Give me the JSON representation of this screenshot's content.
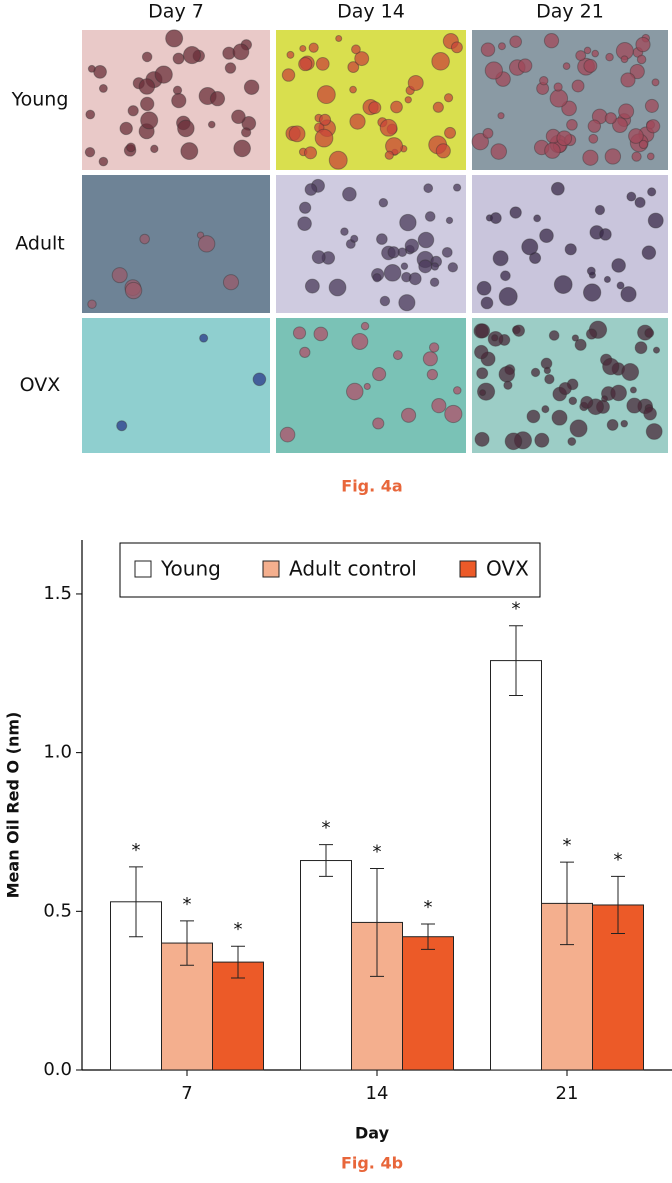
{
  "figure_a": {
    "column_labels": [
      "Day 7",
      "Day 14",
      "Day 21"
    ],
    "row_labels": [
      "Young",
      "Adult",
      "OVX"
    ],
    "caption": "Fig. 4a"
  },
  "chart_data": {
    "type": "bar",
    "caption": "Fig. 4b",
    "x_label": "Day",
    "y_label": "Mean Oil Red O (nm)",
    "categories": [
      "7",
      "14",
      "21"
    ],
    "series": [
      {
        "name": "Young",
        "color": "#ffffff",
        "values": [
          0.53,
          0.66,
          1.29
        ],
        "errors": [
          0.11,
          0.05,
          0.11
        ],
        "significance": [
          "*",
          "*",
          "*"
        ]
      },
      {
        "name": "Adult control",
        "color": "#f4af8e",
        "values": [
          0.4,
          0.465,
          0.525
        ],
        "errors": [
          0.07,
          0.17,
          0.13
        ],
        "significance": [
          "*",
          "*",
          "*"
        ]
      },
      {
        "name": "OVX",
        "color": "#ec5a28",
        "values": [
          0.34,
          0.42,
          0.52
        ],
        "errors": [
          0.05,
          0.04,
          0.09
        ],
        "significance": [
          "*",
          "*",
          "*"
        ]
      }
    ],
    "ylim": [
      0,
      1.67
    ],
    "yticks": [
      {
        "value": 0,
        "label": "0.0"
      },
      0.5,
      {
        "value": 1,
        "label": "1.0"
      },
      1.5
    ],
    "legend": "top",
    "grid": false
  }
}
